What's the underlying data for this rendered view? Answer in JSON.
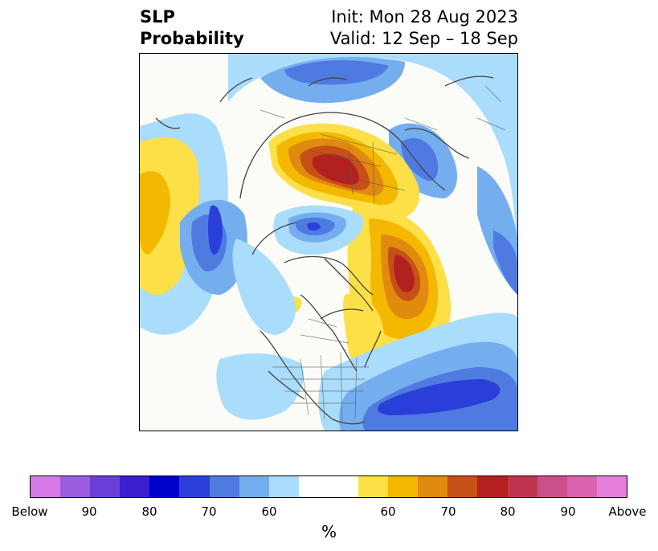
{
  "title": {
    "left_line1": "SLP",
    "left_line2": "Probability",
    "right_line1": "Init: Mon 28 Aug 2023",
    "right_line2": "Valid: 12 Sep – 18 Sep"
  },
  "colorbar": {
    "colors": [
      "#d67ae8",
      "#9b5ce0",
      "#6a3fd8",
      "#3a1fcf",
      "#0000cc",
      "#2a3fd9",
      "#4f7be0",
      "#74aeef",
      "#aadcfb",
      "#ffffff",
      "#ffffff",
      "#fde047",
      "#f4b800",
      "#e08a10",
      "#c65016",
      "#b32020",
      "#bf3550",
      "#cb4f88",
      "#d963ac",
      "#e57fdd"
    ],
    "tick_labels": [
      "Below",
      "90",
      "80",
      "70",
      "60",
      "60",
      "70",
      "80",
      "90",
      "Above"
    ],
    "unit": "%"
  },
  "map": {
    "projection": "north-polar-stereographic",
    "anomaly_colors": {
      "deep_blue": "#2a3fd9",
      "mid_blue": "#4f7be0",
      "light_blue": "#74aeef",
      "pale_blue": "#aadcfb",
      "yellow": "#fde047",
      "gold": "#f4b800",
      "orange": "#e08a10",
      "dark_orange": "#c65016",
      "red": "#b32020"
    }
  }
}
